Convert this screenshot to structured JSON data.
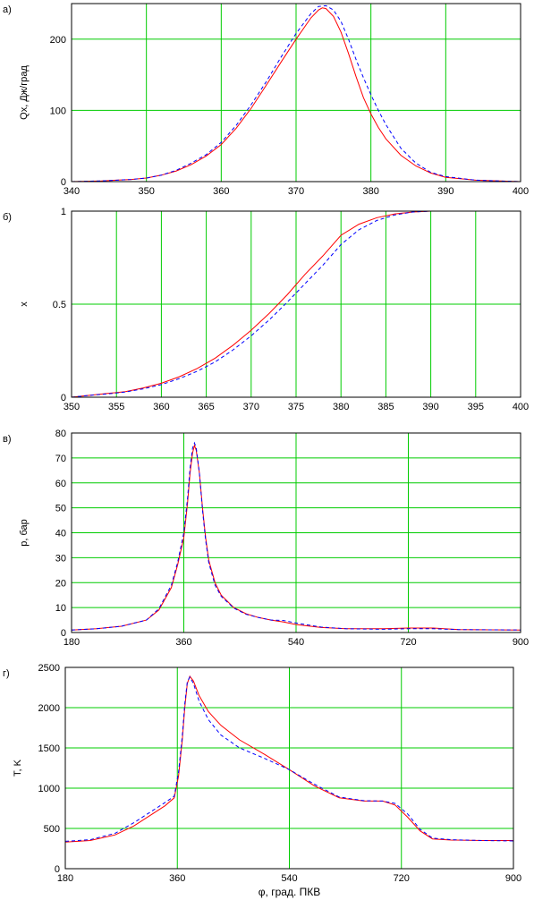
{
  "chart_data": [
    {
      "type": "line",
      "panel_label": "а)",
      "ylabel": "Qx, Дж/град",
      "xlabel": "",
      "xlim": [
        340,
        400
      ],
      "ylim": [
        0,
        250
      ],
      "x_ticks": [
        "340",
        "350",
        "360",
        "370",
        "380",
        "390",
        "400"
      ],
      "x_tick_values": [
        340,
        350,
        360,
        370,
        380,
        390,
        400
      ],
      "y_ticks": [
        "0",
        "100",
        "200"
      ],
      "y_tick_values": [
        0,
        100,
        200
      ],
      "grid": true,
      "series": [
        {
          "color": "#ff0000",
          "style": "solid",
          "points": [
            [
              340,
              0
            ],
            [
              344,
              1
            ],
            [
              348,
              3
            ],
            [
              350,
              5
            ],
            [
              352,
              9
            ],
            [
              354,
              15
            ],
            [
              356,
              24
            ],
            [
              358,
              36
            ],
            [
              360,
              52
            ],
            [
              362,
              75
            ],
            [
              364,
              103
            ],
            [
              366,
              135
            ],
            [
              368,
              168
            ],
            [
              370,
              200
            ],
            [
              372,
              230
            ],
            [
              373,
              241
            ],
            [
              373.5,
              244
            ],
            [
              374,
              243
            ],
            [
              375,
              232
            ],
            [
              376,
              210
            ],
            [
              377,
              180
            ],
            [
              378,
              148
            ],
            [
              379,
              118
            ],
            [
              380,
              95
            ],
            [
              381,
              76
            ],
            [
              382,
              60
            ],
            [
              384,
              37
            ],
            [
              386,
              22
            ],
            [
              388,
              12
            ],
            [
              390,
              6
            ],
            [
              394,
              2
            ],
            [
              400,
              0
            ]
          ]
        },
        {
          "color": "#0000ff",
          "style": "dashed",
          "points": [
            [
              340,
              0
            ],
            [
              344,
              1
            ],
            [
              348,
              3
            ],
            [
              350,
              5
            ],
            [
              352,
              9
            ],
            [
              354,
              16
            ],
            [
              356,
              26
            ],
            [
              358,
              38
            ],
            [
              360,
              55
            ],
            [
              362,
              79
            ],
            [
              364,
              108
            ],
            [
              366,
              140
            ],
            [
              368,
              175
            ],
            [
              370,
              208
            ],
            [
              372,
              236
            ],
            [
              373,
              246
            ],
            [
              374,
              247
            ],
            [
              375,
              241
            ],
            [
              376,
              225
            ],
            [
              377,
              200
            ],
            [
              378,
              172
            ],
            [
              379,
              146
            ],
            [
              380,
              122
            ],
            [
              381,
              100
            ],
            [
              382,
              80
            ],
            [
              384,
              47
            ],
            [
              386,
              26
            ],
            [
              388,
              13
            ],
            [
              390,
              7
            ],
            [
              394,
              2
            ],
            [
              400,
              0
            ]
          ]
        }
      ]
    },
    {
      "type": "line",
      "panel_label": "б)",
      "ylabel": "x",
      "xlabel": "",
      "xlim": [
        350,
        400
      ],
      "ylim": [
        0,
        1
      ],
      "x_ticks": [
        "350",
        "355",
        "360",
        "365",
        "370",
        "375",
        "380",
        "385",
        "390",
        "395",
        "400"
      ],
      "x_tick_values": [
        350,
        355,
        360,
        365,
        370,
        375,
        380,
        385,
        390,
        395,
        400
      ],
      "y_ticks": [
        "0",
        "0.5",
        "1"
      ],
      "y_tick_values": [
        0,
        0.5,
        1
      ],
      "grid": true,
      "series": [
        {
          "color": "#ff0000",
          "style": "solid",
          "points": [
            [
              350,
              0.0
            ],
            [
              352,
              0.01
            ],
            [
              354,
              0.02
            ],
            [
              356,
              0.03
            ],
            [
              358,
              0.05
            ],
            [
              360,
              0.075
            ],
            [
              362,
              0.11
            ],
            [
              364,
              0.155
            ],
            [
              366,
              0.21
            ],
            [
              368,
              0.28
            ],
            [
              370,
              0.36
            ],
            [
              372,
              0.45
            ],
            [
              374,
              0.55
            ],
            [
              376,
              0.66
            ],
            [
              378,
              0.76
            ],
            [
              380,
              0.87
            ],
            [
              382,
              0.93
            ],
            [
              384,
              0.965
            ],
            [
              386,
              0.985
            ],
            [
              388,
              0.995
            ],
            [
              390,
              1.0
            ],
            [
              400,
              1.0
            ]
          ]
        },
        {
          "color": "#0000ff",
          "style": "dashed",
          "points": [
            [
              350,
              0.0
            ],
            [
              352,
              0.01
            ],
            [
              354,
              0.018
            ],
            [
              356,
              0.028
            ],
            [
              358,
              0.045
            ],
            [
              360,
              0.068
            ],
            [
              362,
              0.1
            ],
            [
              364,
              0.14
            ],
            [
              366,
              0.19
            ],
            [
              368,
              0.255
            ],
            [
              370,
              0.33
            ],
            [
              372,
              0.415
            ],
            [
              374,
              0.51
            ],
            [
              376,
              0.61
            ],
            [
              378,
              0.71
            ],
            [
              380,
              0.82
            ],
            [
              382,
              0.9
            ],
            [
              384,
              0.95
            ],
            [
              386,
              0.98
            ],
            [
              388,
              0.995
            ],
            [
              390,
              1.0
            ],
            [
              400,
              1.0
            ]
          ]
        }
      ]
    },
    {
      "type": "line",
      "panel_label": "в)",
      "ylabel": "p, бар",
      "xlabel": "",
      "xlim": [
        180,
        900
      ],
      "ylim": [
        0,
        80
      ],
      "x_ticks": [
        "180",
        "360",
        "540",
        "720",
        "900"
      ],
      "x_tick_values": [
        180,
        360,
        540,
        720,
        900
      ],
      "y_ticks": [
        "0",
        "10",
        "20",
        "30",
        "40",
        "50",
        "60",
        "70",
        "80"
      ],
      "y_tick_values": [
        0,
        10,
        20,
        30,
        40,
        50,
        60,
        70,
        80
      ],
      "grid": true,
      "series": [
        {
          "color": "#ff0000",
          "style": "solid",
          "points": [
            [
              180,
              1
            ],
            [
              220,
              1.5
            ],
            [
              260,
              2.5
            ],
            [
              300,
              5
            ],
            [
              320,
              9
            ],
            [
              340,
              18
            ],
            [
              350,
              27
            ],
            [
              360,
              38
            ],
            [
              366,
              52
            ],
            [
              370,
              64
            ],
            [
              374,
              72
            ],
            [
              377,
              75
            ],
            [
              380,
              73
            ],
            [
              385,
              64
            ],
            [
              390,
              50
            ],
            [
              395,
              38
            ],
            [
              400,
              29
            ],
            [
              410,
              20
            ],
            [
              420,
              15
            ],
            [
              440,
              10
            ],
            [
              460,
              7.5
            ],
            [
              480,
              6
            ],
            [
              500,
              5
            ],
            [
              520,
              4.2
            ],
            [
              540,
              3.2
            ],
            [
              580,
              2
            ],
            [
              620,
              1.5
            ],
            [
              680,
              1.5
            ],
            [
              720,
              1.8
            ],
            [
              760,
              1.8
            ],
            [
              800,
              1.2
            ],
            [
              900,
              1
            ]
          ]
        },
        {
          "color": "#0000ff",
          "style": "dashed",
          "points": [
            [
              180,
              1
            ],
            [
              220,
              1.5
            ],
            [
              260,
              2.5
            ],
            [
              300,
              5
            ],
            [
              320,
              9.5
            ],
            [
              340,
              19
            ],
            [
              350,
              28
            ],
            [
              360,
              40
            ],
            [
              366,
              54
            ],
            [
              370,
              66
            ],
            [
              374,
              74
            ],
            [
              377,
              76
            ],
            [
              380,
              74
            ],
            [
              385,
              64
            ],
            [
              390,
              49
            ],
            [
              395,
              37
            ],
            [
              400,
              28
            ],
            [
              410,
              19
            ],
            [
              420,
              14.5
            ],
            [
              440,
              9.8
            ],
            [
              460,
              7.3
            ],
            [
              480,
              6
            ],
            [
              500,
              5
            ],
            [
              520,
              4.8
            ],
            [
              540,
              3.8
            ],
            [
              580,
              2.2
            ],
            [
              620,
              1.5
            ],
            [
              680,
              1.3
            ],
            [
              720,
              1.5
            ],
            [
              760,
              1.5
            ],
            [
              800,
              1.2
            ],
            [
              900,
              1
            ]
          ]
        }
      ]
    },
    {
      "type": "line",
      "panel_label": "г)",
      "ylabel": "T, K",
      "xlabel": "φ, град. ПКВ",
      "xlim": [
        180,
        900
      ],
      "ylim": [
        0,
        2500
      ],
      "x_ticks": [
        "180",
        "360",
        "540",
        "720",
        "900"
      ],
      "x_tick_values": [
        180,
        360,
        540,
        720,
        900
      ],
      "y_ticks": [
        "0",
        "500",
        "1000",
        "1500",
        "2000",
        "2500"
      ],
      "y_tick_values": [
        0,
        500,
        1000,
        1500,
        2000,
        2500
      ],
      "grid": true,
      "series": [
        {
          "color": "#ff0000",
          "style": "solid",
          "points": [
            [
              180,
              330
            ],
            [
              220,
              350
            ],
            [
              260,
              420
            ],
            [
              290,
              530
            ],
            [
              320,
              680
            ],
            [
              340,
              780
            ],
            [
              355,
              880
            ],
            [
              362,
              1150
            ],
            [
              368,
              1600
            ],
            [
              372,
              2000
            ],
            [
              376,
              2300
            ],
            [
              380,
              2390
            ],
            [
              386,
              2330
            ],
            [
              395,
              2150
            ],
            [
              410,
              1950
            ],
            [
              430,
              1780
            ],
            [
              460,
              1600
            ],
            [
              500,
              1420
            ],
            [
              540,
              1230
            ],
            [
              580,
              1030
            ],
            [
              620,
              880
            ],
            [
              660,
              840
            ],
            [
              690,
              840
            ],
            [
              710,
              790
            ],
            [
              730,
              640
            ],
            [
              750,
              470
            ],
            [
              770,
              370
            ],
            [
              800,
              355
            ],
            [
              850,
              350
            ],
            [
              900,
              350
            ]
          ]
        },
        {
          "color": "#0000ff",
          "style": "dashed",
          "points": [
            [
              180,
              340
            ],
            [
              220,
              360
            ],
            [
              260,
              440
            ],
            [
              290,
              570
            ],
            [
              320,
              720
            ],
            [
              340,
              820
            ],
            [
              355,
              900
            ],
            [
              362,
              1200
            ],
            [
              368,
              1650
            ],
            [
              372,
              2050
            ],
            [
              376,
              2320
            ],
            [
              380,
              2380
            ],
            [
              386,
              2300
            ],
            [
              395,
              2080
            ],
            [
              410,
              1850
            ],
            [
              430,
              1660
            ],
            [
              460,
              1500
            ],
            [
              500,
              1370
            ],
            [
              540,
              1230
            ],
            [
              580,
              1050
            ],
            [
              620,
              890
            ],
            [
              660,
              845
            ],
            [
              690,
              840
            ],
            [
              710,
              810
            ],
            [
              730,
              680
            ],
            [
              750,
              490
            ],
            [
              770,
              380
            ],
            [
              800,
              360
            ],
            [
              850,
              350
            ],
            [
              900,
              345
            ]
          ]
        }
      ]
    }
  ]
}
